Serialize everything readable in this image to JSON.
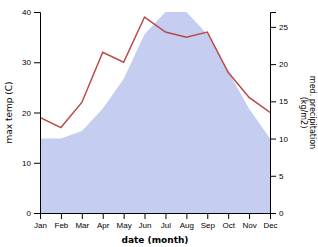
{
  "chart_data": {
    "type": "line",
    "categories": [
      "Jan",
      "Feb",
      "Mar",
      "Apr",
      "May",
      "Jun",
      "Jul",
      "Aug",
      "Sep",
      "Oct",
      "Nov",
      "Dec"
    ],
    "series": [
      {
        "type": "area",
        "color": "#c5cdf0",
        "axis": "y2",
        "values": [
          10,
          10,
          11,
          14,
          18,
          24,
          27,
          27,
          24,
          19,
          14,
          10
        ]
      },
      {
        "type": "line",
        "color": "#b94a48",
        "values": [
          19,
          17,
          22,
          32,
          30,
          39,
          36,
          35,
          36,
          28,
          23,
          20
        ]
      }
    ],
    "xlabel": "date (month)",
    "ylabel": "max temp (C)",
    "y2label": "med. precipitation\n(kg/m2)",
    "ylim": [
      0,
      40
    ],
    "yticks": [
      0,
      10,
      20,
      30,
      40
    ],
    "y2lim": [
      0,
      27
    ],
    "y2ticks": [
      0,
      5,
      10,
      15,
      20,
      25
    ]
  }
}
